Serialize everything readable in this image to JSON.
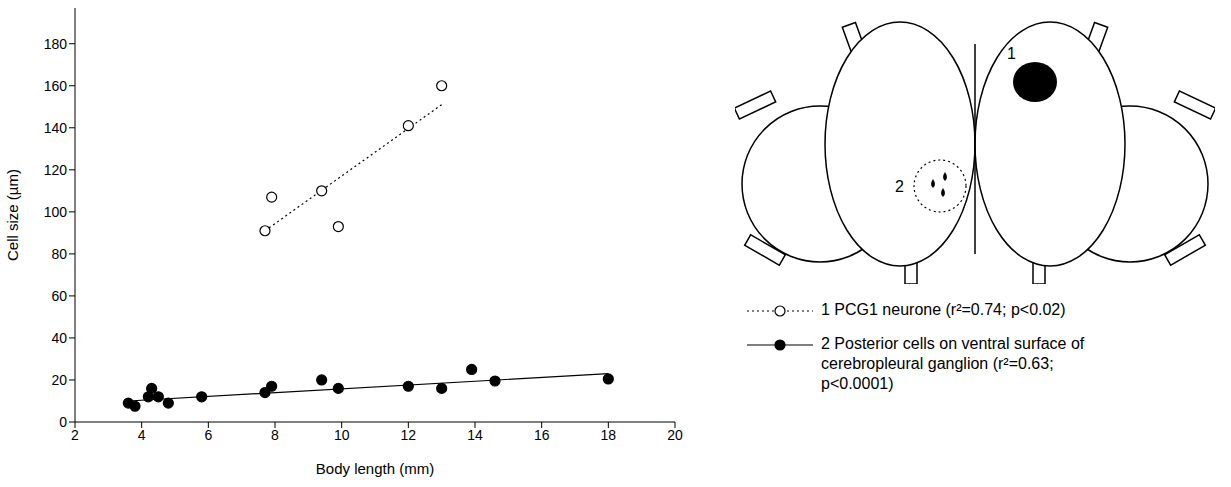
{
  "chart_data": {
    "type": "scatter",
    "xlabel": "Body length (mm)",
    "ylabel": "Cell size (µm)",
    "xlim": [
      2,
      20
    ],
    "xticks": [
      2,
      4,
      6,
      8,
      10,
      12,
      14,
      16,
      18,
      20
    ],
    "ylim": [
      0,
      197
    ],
    "yticks": [
      0,
      20,
      40,
      60,
      80,
      100,
      120,
      140,
      160,
      180
    ],
    "grid": false,
    "legend": "right",
    "annotations": [
      "1",
      "2"
    ],
    "series": [
      {
        "name": "1 PCG1 neurone (r²=0.74; p<0.02)",
        "color": "#000000",
        "marker": "open_circle",
        "line_style": "dotted",
        "x": [
          7.7,
          7.9,
          9.4,
          9.9,
          12,
          13
        ],
        "values": [
          91,
          107,
          110,
          93,
          141,
          160
        ],
        "trend": {
          "x": [
            7.7,
            13
          ],
          "values": [
            91,
            151
          ]
        }
      },
      {
        "name": "2 Posterior cells on ventral surface of cerebropleural ganglion (r²=0.63; p<0.0001)",
        "color": "#000000",
        "marker": "circle",
        "line_style": "solid",
        "x": [
          3.6,
          3.8,
          4.2,
          4.3,
          4.5,
          4.8,
          5.8,
          7.7,
          7.9,
          9.4,
          9.9,
          12,
          13,
          13.9,
          14.6,
          18
        ],
        "values": [
          9,
          7.5,
          12,
          16,
          12,
          9,
          12,
          14,
          17,
          20,
          16,
          17,
          16,
          25,
          19.5,
          20.5
        ],
        "trend": {
          "x": [
            3.6,
            18
          ],
          "values": [
            10,
            23
          ]
        }
      }
    ]
  }
}
